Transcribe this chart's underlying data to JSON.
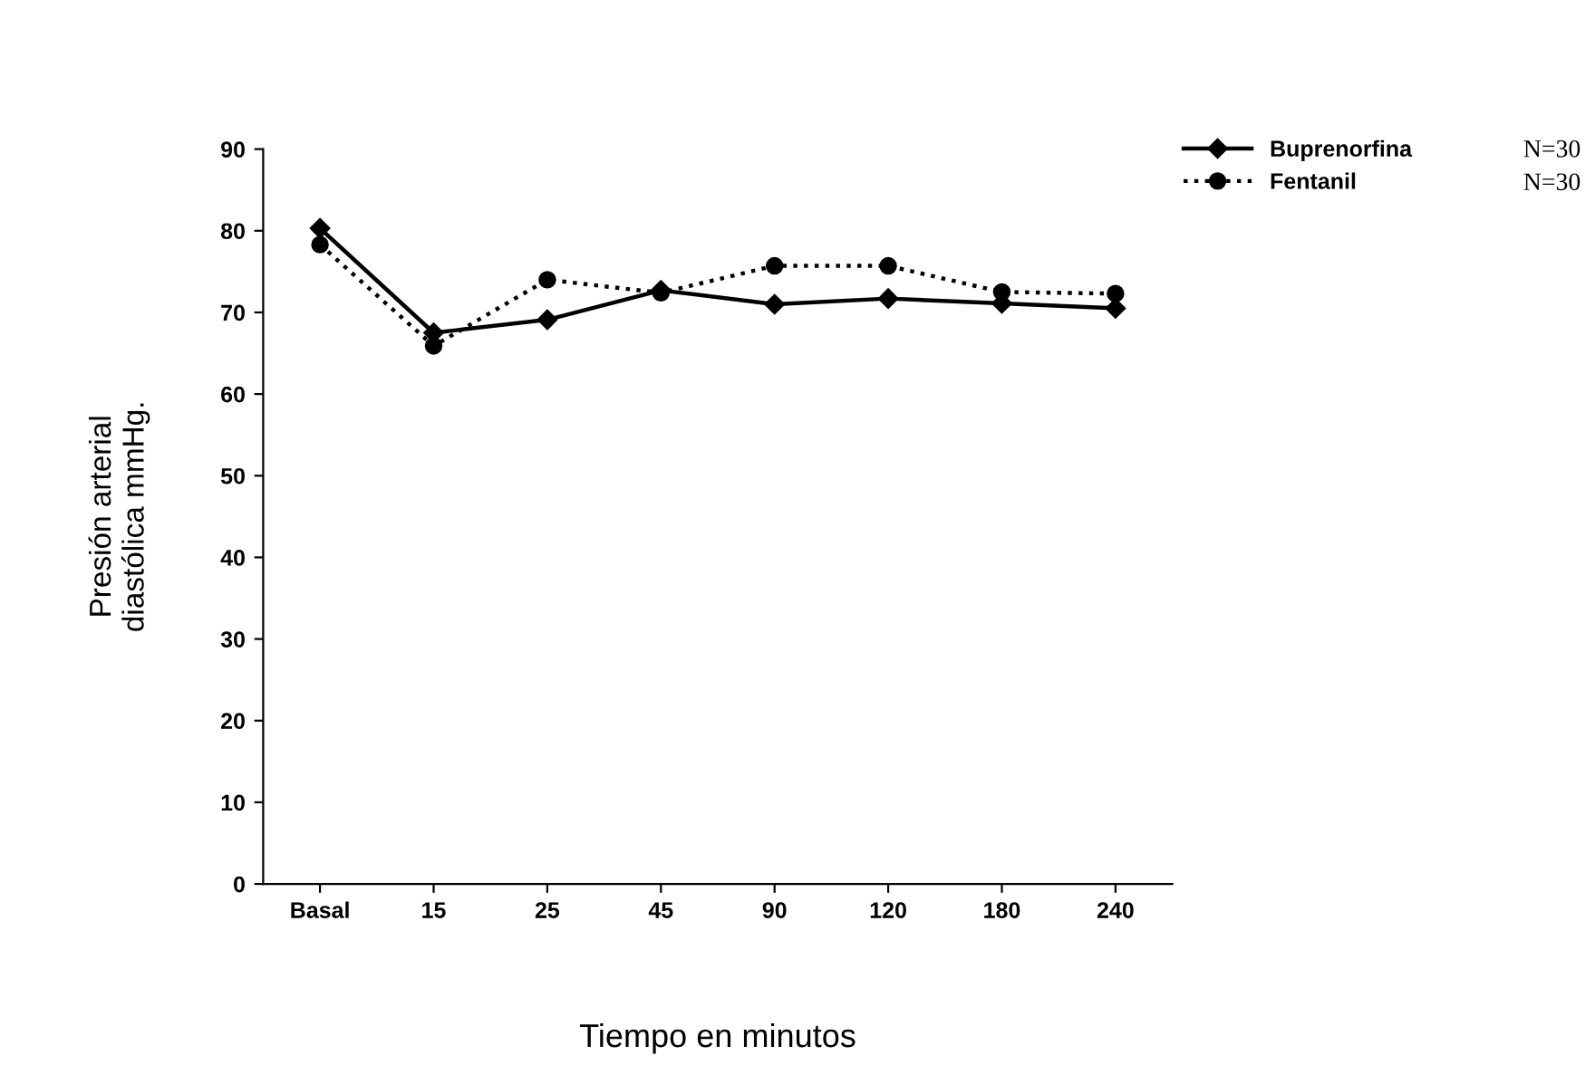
{
  "chart_data": {
    "type": "line",
    "xlabel": "Tiempo en minutos",
    "ylabel": "Presión arterial\ndiastólica mmHg.",
    "categories": [
      "Basal",
      "15",
      "25",
      "45",
      "90",
      "120",
      "180",
      "240"
    ],
    "series": [
      {
        "name": "Buprenorfina",
        "color": "#000000",
        "marker": "diamond",
        "line_style": "solid",
        "values": [
          80.3,
          67.5,
          69.1,
          72.7,
          71.0,
          71.7,
          71.1,
          70.5
        ]
      },
      {
        "name": "Fentanil",
        "color": "#000000",
        "marker": "circle",
        "line_style": "dotted",
        "values": [
          78.3,
          65.9,
          74.0,
          72.4,
          75.7,
          75.7,
          72.5,
          72.3
        ]
      }
    ],
    "ylim": [
      0,
      90
    ],
    "yticks": [
      0,
      10,
      20,
      30,
      40,
      50,
      60,
      70,
      80,
      90
    ],
    "grid": false,
    "legend": "top right",
    "annotations": [
      "N=30",
      "N=30"
    ]
  }
}
